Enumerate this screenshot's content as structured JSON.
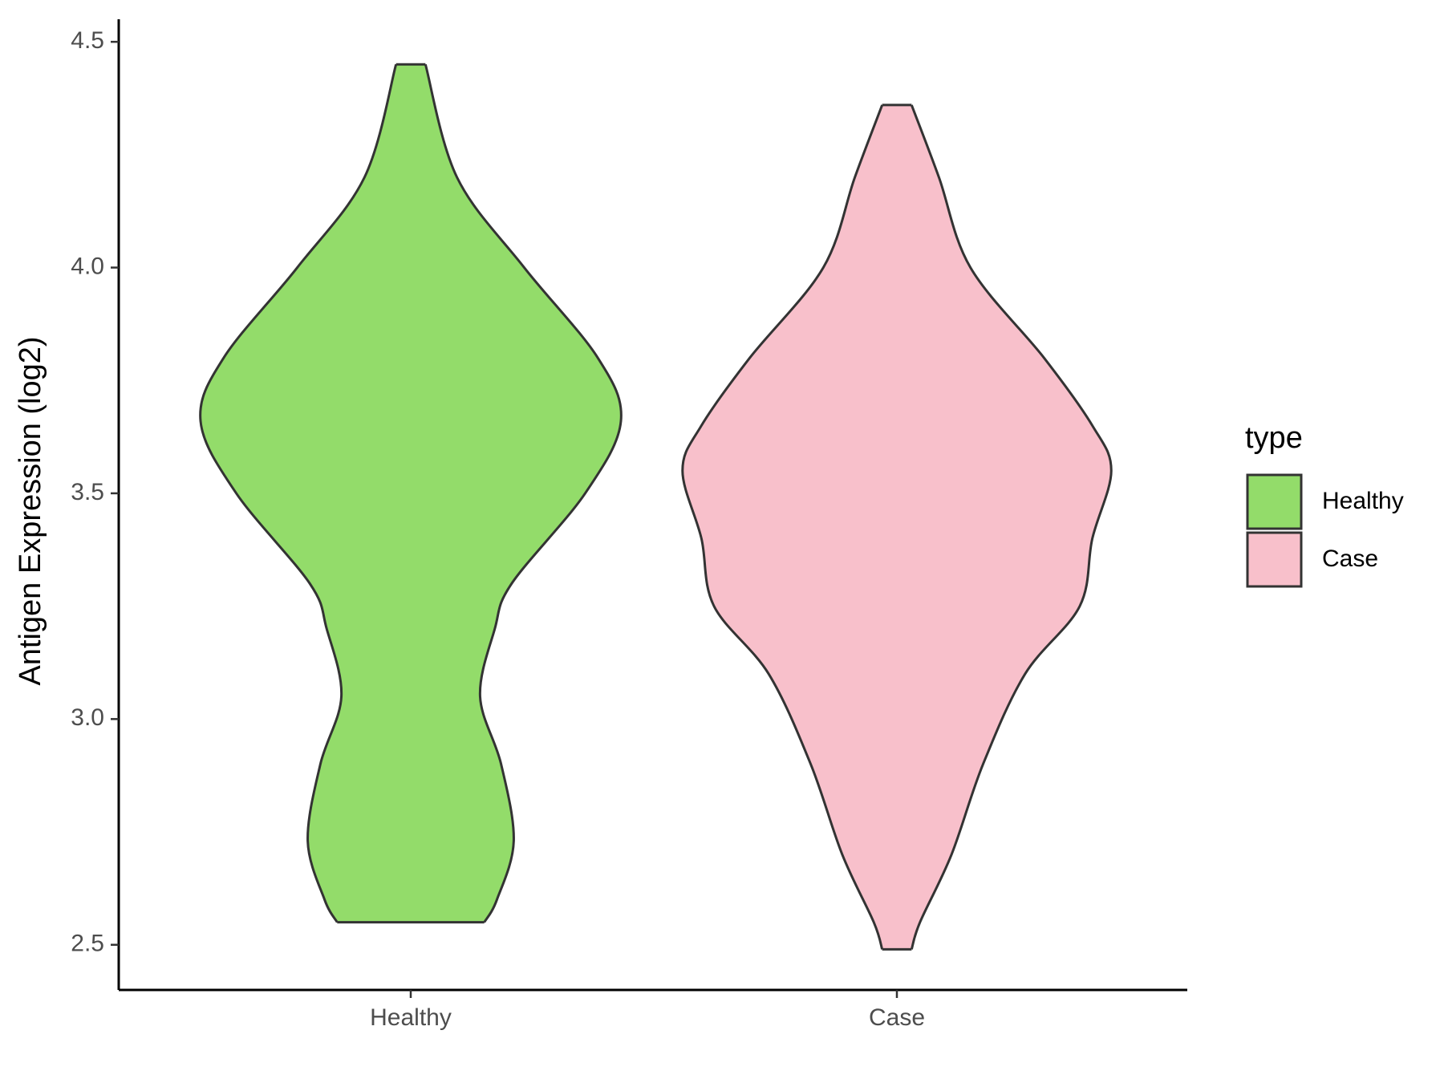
{
  "chart_data": {
    "type": "violin",
    "y_label": "Antigen Expression (log2)",
    "categories": [
      "Healthy",
      "Case"
    ],
    "legend_title": "type",
    "legend": "right",
    "ylim": [
      2.4,
      4.55
    ],
    "yticks": [
      {
        "value": 2.5,
        "label": "2.5"
      },
      {
        "value": 3,
        "label": "3.0"
      },
      {
        "value": 3.5,
        "label": "3.5"
      },
      {
        "value": 4,
        "label": "4.0"
      },
      {
        "value": 4.5,
        "label": "4.5"
      }
    ],
    "series": [
      {
        "name": "Healthy",
        "color": "#93dc6a",
        "y": [
          2.55,
          2.6,
          2.73,
          2.9,
          3.05,
          3.2,
          3.3,
          3.5,
          3.66,
          3.8,
          4.0,
          4.2,
          4.45
        ],
        "density": [
          0.35,
          0.41,
          0.49,
          0.43,
          0.33,
          0.4,
          0.48,
          0.83,
          1,
          0.89,
          0.54,
          0.22,
          0.07
        ]
      },
      {
        "name": "Case",
        "color": "#f8c0cb",
        "y": [
          2.49,
          2.55,
          2.7,
          2.9,
          3.1,
          3.25,
          3.4,
          3.55,
          3.65,
          3.8,
          4.0,
          4.2,
          4.36
        ],
        "density": [
          0.07,
          0.11,
          0.26,
          0.41,
          0.61,
          0.87,
          0.93,
          1.02,
          0.93,
          0.7,
          0.35,
          0.2,
          0.07
        ]
      }
    ]
  }
}
